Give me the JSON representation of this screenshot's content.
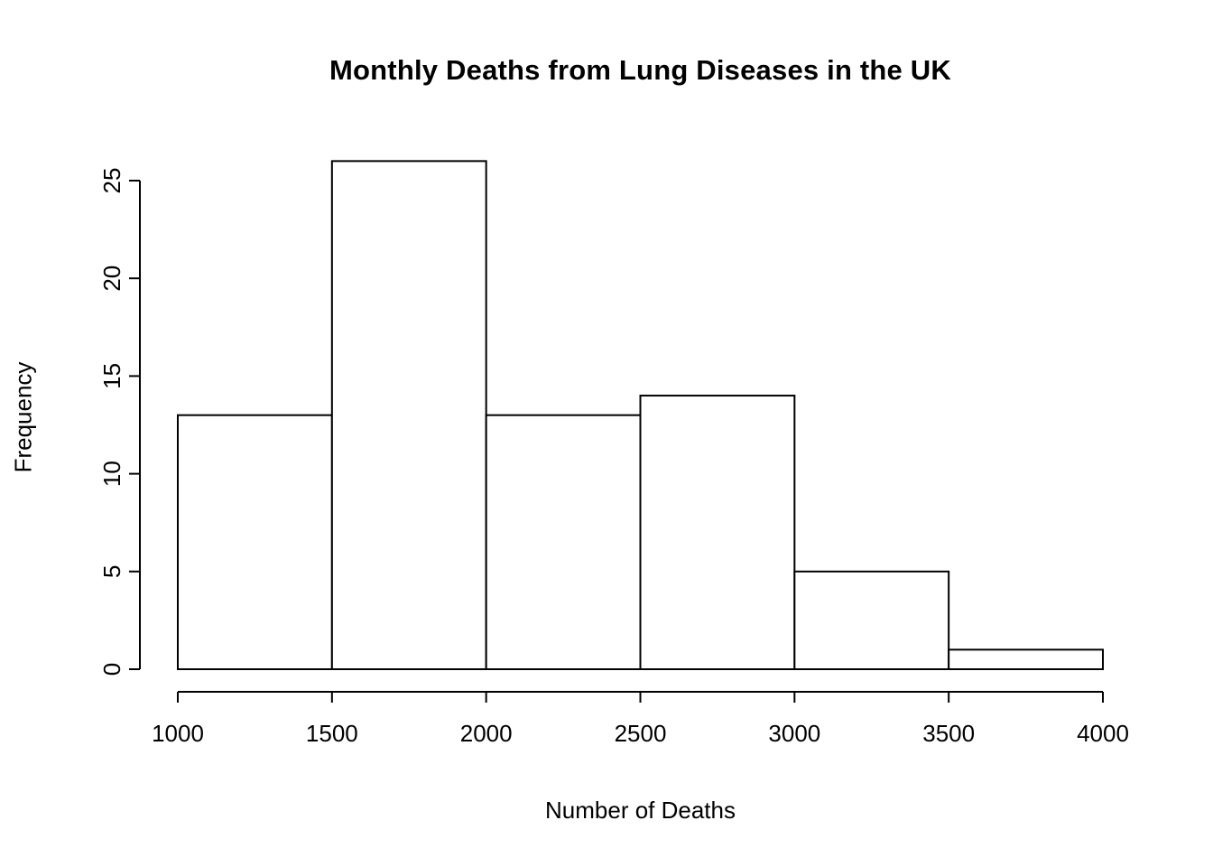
{
  "chart_data": {
    "type": "bar",
    "subtype": "histogram",
    "title": "Monthly Deaths from Lung Diseases in the UK",
    "xlabel": "Number of Deaths",
    "ylabel": "Frequency",
    "bin_edges": [
      1000,
      1500,
      2000,
      2500,
      3000,
      3500,
      4000
    ],
    "counts": [
      13,
      26,
      13,
      14,
      5,
      1
    ],
    "x_ticks": [
      1000,
      1500,
      2000,
      2500,
      3000,
      3500,
      4000
    ],
    "y_ticks": [
      0,
      5,
      10,
      15,
      20,
      25
    ],
    "xlim": [
      1000,
      4000
    ],
    "ylim": [
      0,
      26
    ],
    "grid": false,
    "legend": "none",
    "y_tick_label_rotation": 90,
    "bar_fill": "#ffffff",
    "bar_stroke": "#000000",
    "axis_color": "#000000",
    "background": "#ffffff"
  }
}
